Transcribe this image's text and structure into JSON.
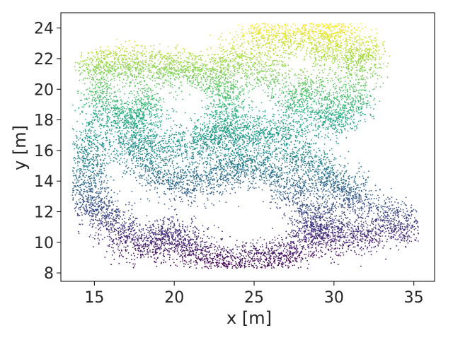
{
  "chart_data": {
    "type": "scatter",
    "title": "",
    "xlabel": "x [m]",
    "ylabel": "y [m]",
    "xlim": [
      12.9,
      36.3
    ],
    "ylim": [
      7.45,
      25.0
    ],
    "xticks": [
      15,
      20,
      25,
      30,
      35
    ],
    "yticks": [
      8,
      10,
      12,
      14,
      16,
      18,
      20,
      22,
      24
    ],
    "grid": false,
    "legend": "none",
    "colormap": "viridis",
    "color_variable": "y",
    "color_range": [
      8.4,
      24.2
    ],
    "approx_point_count": 14000,
    "density_backbone": {
      "description_points_xy": [
        [
          15.2,
          21.5
        ],
        [
          16.5,
          21.6
        ],
        [
          18.0,
          21.5
        ],
        [
          19.5,
          21.3
        ],
        [
          21.0,
          21.3
        ],
        [
          22.5,
          21.2
        ],
        [
          23.2,
          20.0
        ],
        [
          23.4,
          18.6
        ],
        [
          22.8,
          17.2
        ],
        [
          15.4,
          19.5
        ],
        [
          16.2,
          18.3
        ],
        [
          17.5,
          18.0
        ],
        [
          18.3,
          19.0
        ],
        [
          14.8,
          16.5
        ],
        [
          14.5,
          15.0
        ],
        [
          14.5,
          13.5
        ],
        [
          15.0,
          12.3
        ],
        [
          16.0,
          11.5
        ],
        [
          17.0,
          10.2
        ],
        [
          18.5,
          9.9
        ],
        [
          19.5,
          10.5
        ],
        [
          20.5,
          10.2
        ],
        [
          21.5,
          9.3
        ],
        [
          23.0,
          8.7
        ],
        [
          24.5,
          8.8
        ],
        [
          26.0,
          9.0
        ],
        [
          27.5,
          9.4
        ],
        [
          17.5,
          15.8
        ],
        [
          19.0,
          14.5
        ],
        [
          20.5,
          13.8
        ],
        [
          22.0,
          14.2
        ],
        [
          23.5,
          14.7
        ],
        [
          18.0,
          16.8
        ],
        [
          20.0,
          16.4
        ],
        [
          22.0,
          16.6
        ],
        [
          24.0,
          17.0
        ],
        [
          25.5,
          17.1
        ],
        [
          27.0,
          17.0
        ],
        [
          24.5,
          15.2
        ],
        [
          26.0,
          14.5
        ],
        [
          27.5,
          13.5
        ],
        [
          28.5,
          12.0
        ],
        [
          29.0,
          11.0
        ],
        [
          28.0,
          15.5
        ],
        [
          29.5,
          14.5
        ],
        [
          30.5,
          13.5
        ],
        [
          31.5,
          12.8
        ],
        [
          29.0,
          10.5
        ],
        [
          30.5,
          10.4
        ],
        [
          32.0,
          10.5
        ],
        [
          33.5,
          11.5
        ],
        [
          34.5,
          11.0
        ],
        [
          29.5,
          18.0
        ],
        [
          30.5,
          18.5
        ],
        [
          31.2,
          19.5
        ],
        [
          31.5,
          21.5
        ],
        [
          31.8,
          22.5
        ],
        [
          28.5,
          20.0
        ],
        [
          27.5,
          19.0
        ],
        [
          29.5,
          22.5
        ],
        [
          28.8,
          23.9
        ],
        [
          30.3,
          23.6
        ],
        [
          24.0,
          22.0
        ],
        [
          25.5,
          23.6
        ],
        [
          27.0,
          23.4
        ],
        [
          26.0,
          21.0
        ]
      ]
    }
  }
}
